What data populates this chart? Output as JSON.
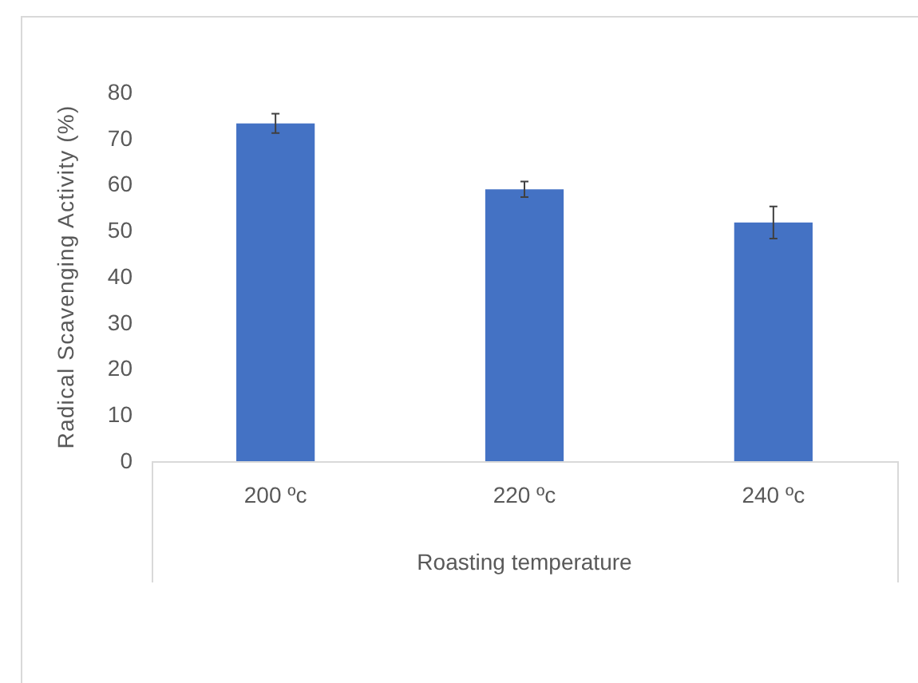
{
  "chart_data": {
    "type": "bar",
    "xlabel": "Roasting temperature",
    "ylabel": "Radical Scavenging Activity (%)",
    "categories": [
      "200 ºc",
      "220 ºc",
      "240 ºc"
    ],
    "values": [
      73.3,
      59.0,
      51.8
    ],
    "errors": [
      2.1,
      1.7,
      3.5
    ],
    "color": "#4472c4",
    "ylim": [
      0,
      80
    ],
    "yticks": [
      0,
      10,
      20,
      30,
      40,
      50,
      60,
      70,
      80
    ],
    "grid": false
  }
}
